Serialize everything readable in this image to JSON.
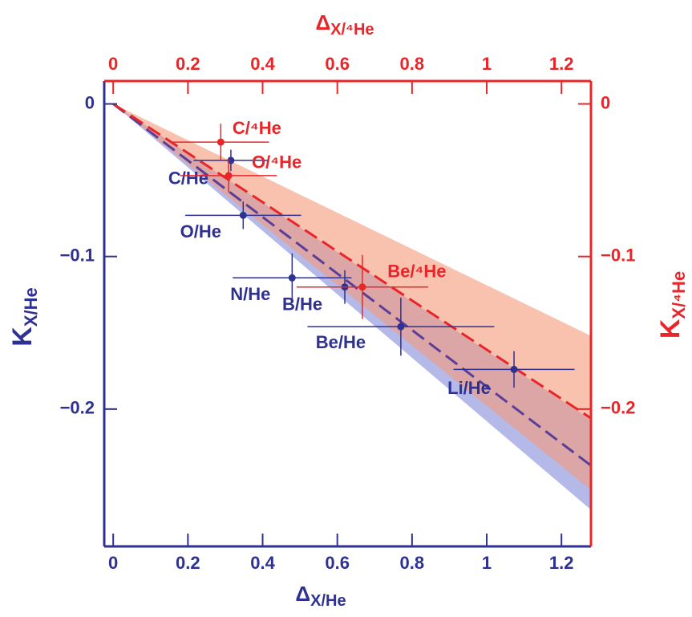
{
  "chart_data": {
    "type": "errorbar",
    "x_label": "Δ",
    "x_label_sub": "X/He",
    "x2_label": "Δ",
    "x2_label_sub": "X/⁴He",
    "y_label": "K",
    "y_label_sub": "X/He",
    "y2_label": "K",
    "y2_label_sub": "X/⁴He",
    "xlim": [
      -0.024,
      1.279
    ],
    "x2lim": [
      -0.024,
      1.279
    ],
    "ylim": [
      -0.29,
      0.015
    ],
    "y2lim": [
      -0.29,
      0.015
    ],
    "xticks": [
      0,
      0.2,
      0.4,
      0.6,
      0.8,
      1,
      1.2
    ],
    "x2ticks": [
      0,
      0.2,
      0.4,
      0.6,
      0.8,
      1,
      1.2
    ],
    "yticks": [
      0,
      {
        "value": -0.1,
        "label": "−0.1"
      },
      {
        "value": -0.2,
        "label": "−0.2"
      }
    ],
    "y2ticks": [
      0,
      {
        "value": -0.1,
        "label": "−0.1"
      },
      {
        "value": -0.2,
        "label": "−0.2"
      }
    ],
    "series": [
      {
        "axis": "y",
        "color": "#2e3192",
        "band_color": "#8c93dc",
        "line_color": "#5a3e98",
        "names": [
          "C/He",
          "O/He",
          "N/He",
          "B/He",
          "Be/He",
          "Li/He"
        ],
        "x": [
          0.315,
          0.348,
          0.479,
          0.62,
          0.77,
          1.073
        ],
        "xerr": [
          0.1,
          0.155,
          0.159,
          0.073,
          0.25,
          0.162
        ],
        "values": [
          -0.037,
          -0.073,
          -0.114,
          -0.12,
          -0.146,
          -0.174
        ],
        "yerr": [
          0.007,
          0.009,
          0.016,
          0.011,
          0.019,
          0.012
        ],
        "fit_x": [
          0,
          1.279
        ],
        "fit_y": [
          0,
          -0.237
        ],
        "band_high": [
          0,
          -0.207
        ],
        "band_low": [
          0,
          -0.266
        ]
      },
      {
        "axis": "y2",
        "color": "#e8262a",
        "band_color": "#f59a78",
        "line_color": "#e8262a",
        "names": [
          "C/⁴He",
          "O/⁴He",
          "Be/⁴He"
        ],
        "x": [
          0.288,
          0.309,
          0.667
        ],
        "xerr": [
          0.129,
          0.129,
          0.176
        ],
        "values": [
          -0.025,
          -0.047,
          -0.12
        ],
        "yerr": [
          0.012,
          0.011,
          0.021
        ],
        "fit_x": [
          0,
          1.279
        ],
        "fit_y": [
          0,
          -0.206
        ],
        "band_high": [
          0,
          -0.152
        ],
        "band_low": [
          0,
          -0.253
        ]
      }
    ]
  }
}
